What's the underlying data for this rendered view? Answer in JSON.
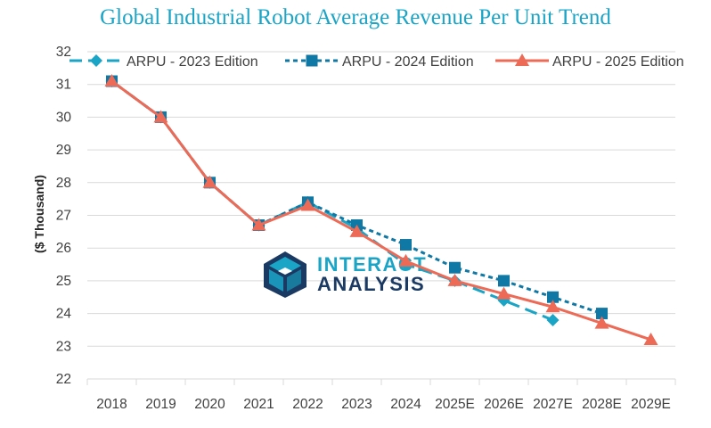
{
  "title": "Global Industrial Robot Average Revenue Per Unit Trend",
  "watermark": {
    "line1": "INTERACT",
    "line2": "ANALYSIS",
    "logo_icon": "isometric-cube-logo-icon"
  },
  "colors": {
    "title": "#1aa5c7",
    "series_2023": "#1aa5c7",
    "series_2024": "#0f78a5",
    "series_2025": "#ec6a56",
    "grid": "#d9d9d9",
    "watermark_dark": "#1b3a63",
    "watermark_light": "#1aa5c7"
  },
  "chart_data": {
    "type": "line",
    "title": "Global Industrial Robot Average Revenue Per Unit Trend",
    "xlabel": "",
    "ylabel": "($ Thousand)",
    "ylim": [
      22,
      32
    ],
    "yticks": [
      22,
      23,
      24,
      25,
      26,
      27,
      28,
      29,
      30,
      31,
      32
    ],
    "grid": true,
    "legend": "top",
    "categories": [
      "2018",
      "2019",
      "2020",
      "2021",
      "2022",
      "2023",
      "2024",
      "2025E",
      "2026E",
      "2027E",
      "2028E",
      "2029E"
    ],
    "series": [
      {
        "name": "ARPU - 2023 Edition",
        "marker": "diamond",
        "dash": "long-dash",
        "color": "#1aa5c7",
        "values": [
          31.1,
          30.0,
          28.0,
          26.7,
          27.4,
          26.6,
          25.5,
          25.0,
          24.4,
          23.8,
          null,
          null
        ]
      },
      {
        "name": "ARPU - 2024 Edition",
        "marker": "square",
        "dash": "short-dash",
        "color": "#0f78a5",
        "values": [
          31.1,
          30.0,
          28.0,
          26.7,
          27.4,
          26.7,
          26.1,
          25.4,
          25.0,
          24.5,
          24.0,
          null
        ]
      },
      {
        "name": "ARPU - 2025 Edition",
        "marker": "triangle",
        "dash": "solid",
        "color": "#ec6a56",
        "values": [
          31.1,
          30.0,
          28.0,
          26.7,
          27.3,
          26.5,
          25.6,
          25.0,
          24.6,
          24.2,
          23.7,
          23.2
        ]
      }
    ]
  }
}
